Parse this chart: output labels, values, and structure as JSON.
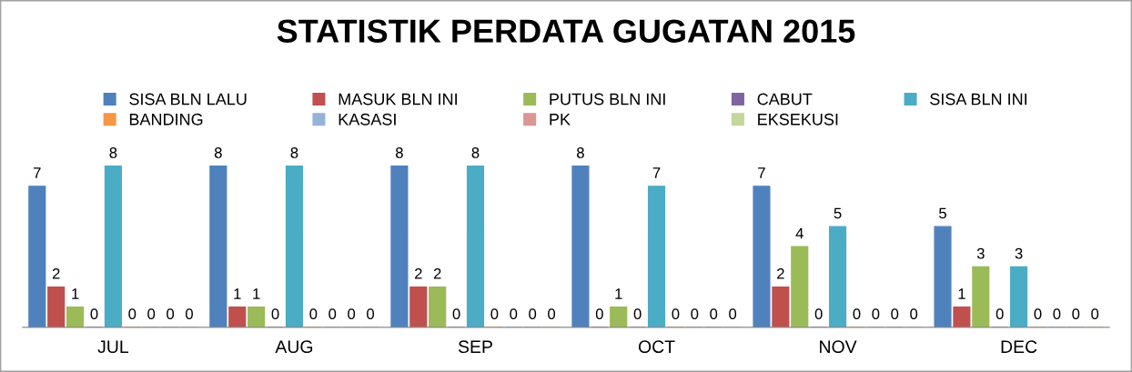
{
  "chart_data": {
    "type": "bar",
    "title": "STATISTIK PERDATA GUGATAN 2015",
    "categories": [
      "JUL",
      "AUG",
      "SEP",
      "OCT",
      "NOV",
      "DEC"
    ],
    "series": [
      {
        "name": "SISA BLN LALU",
        "color": "#4f81bd",
        "values": [
          7,
          8,
          8,
          8,
          7,
          5
        ]
      },
      {
        "name": "MASUK BLN INI",
        "color": "#c0504d",
        "values": [
          2,
          1,
          2,
          0,
          2,
          1
        ]
      },
      {
        "name": "PUTUS BLN INI",
        "color": "#9bbb59",
        "values": [
          1,
          1,
          2,
          1,
          4,
          3
        ]
      },
      {
        "name": "CABUT",
        "color": "#8064a2",
        "values": [
          0,
          0,
          0,
          0,
          0,
          0
        ]
      },
      {
        "name": "SISA BLN INI",
        "color": "#4bacc6",
        "values": [
          8,
          8,
          8,
          7,
          5,
          3
        ]
      },
      {
        "name": "BANDING",
        "color": "#f79646",
        "values": [
          0,
          0,
          0,
          0,
          0,
          0
        ]
      },
      {
        "name": "KASASI",
        "color": "#95b3d7",
        "values": [
          0,
          0,
          0,
          0,
          0,
          0
        ]
      },
      {
        "name": "PK",
        "color": "#da9694",
        "values": [
          0,
          0,
          0,
          0,
          0,
          0
        ]
      },
      {
        "name": "EKSEKUSI",
        "color": "#c3d69b",
        "values": [
          0,
          0,
          0,
          0,
          0,
          0
        ]
      }
    ],
    "data_labels": true,
    "legend": "top",
    "grid": false
  }
}
